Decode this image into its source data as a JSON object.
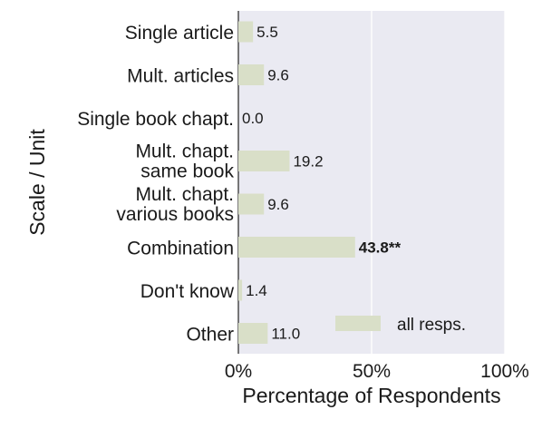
{
  "chart_data": {
    "type": "bar",
    "orientation": "horizontal",
    "categories": [
      [
        "Single article"
      ],
      [
        "Mult. articles"
      ],
      [
        "Single book chapt."
      ],
      [
        "Mult. chapt.",
        "same book"
      ],
      [
        "Mult. chapt.",
        "various books"
      ],
      [
        "Combination"
      ],
      [
        "Don't know"
      ],
      [
        "Other"
      ]
    ],
    "series": [
      {
        "name": "all resps.",
        "values": [
          5.5,
          9.6,
          0.0,
          19.2,
          9.6,
          43.8,
          1.4,
          11.0
        ],
        "labels": [
          "5.5",
          "9.6",
          "0.0",
          "19.2",
          "9.6",
          "43.8**",
          "1.4",
          "11.0"
        ],
        "bold": [
          false,
          false,
          false,
          false,
          false,
          true,
          false,
          false
        ]
      }
    ],
    "xlabel": "Percentage of Respondents",
    "ylabel": "Scale / Unit",
    "xlim": [
      0,
      100
    ],
    "xticks": [
      0,
      50,
      100
    ],
    "xtick_labels": [
      "0%",
      "50%",
      "100%"
    ],
    "grid": "vertical",
    "legend_position": "lower-right",
    "colors": {
      "bar": "#d9dfc8",
      "plot_background": "#eaeaf2",
      "grid": "#ffffff",
      "axis": "#222222"
    }
  }
}
